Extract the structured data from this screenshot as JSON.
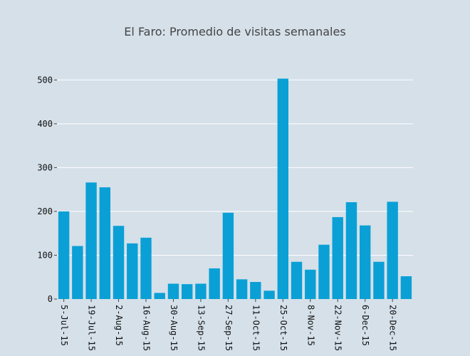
{
  "chart_data": {
    "type": "bar",
    "title": "El Faro: Promedio de visitas semanales",
    "xlabel": "",
    "ylabel": "",
    "ylim": [
      0,
      520
    ],
    "yticks": [
      0,
      100,
      200,
      300,
      400,
      500
    ],
    "grid": true,
    "bar_color": "#0aa0d6",
    "background_color": "#d5e0e9",
    "categories": [
      "2015-07-05",
      "2015-07-12",
      "2015-07-19",
      "2015-07-26",
      "2015-08-02",
      "2015-08-09",
      "2015-08-16",
      "2015-08-23",
      "2015-08-30",
      "2015-09-06",
      "2015-09-13",
      "2015-09-20",
      "2015-09-27",
      "2015-10-04",
      "2015-10-11",
      "2015-10-18",
      "2015-10-25",
      "2015-11-01",
      "2015-11-08",
      "2015-11-15",
      "2015-11-22",
      "2015-11-29",
      "2015-12-06",
      "2015-12-13",
      "2015-12-20",
      "2015-12-27"
    ],
    "values": [
      200,
      121,
      266,
      255,
      167,
      127,
      140,
      14,
      35,
      34,
      35,
      70,
      197,
      45,
      39,
      19,
      503,
      85,
      67,
      124,
      187,
      221,
      168,
      85,
      222,
      52
    ],
    "xtick_labels": [
      "5-Jul-15",
      "19-Jul-15",
      "2-Aug-15",
      "16-Aug-15",
      "30-Aug-15",
      "13-Sep-15",
      "27-Sep-15",
      "11-Oct-15",
      "25-Oct-15",
      "8-Nov-15",
      "22-Nov-15",
      "6-Dec-15",
      "20-Dec-15"
    ],
    "xtick_indices": [
      0,
      2,
      4,
      6,
      8,
      10,
      12,
      14,
      16,
      18,
      20,
      22,
      24
    ]
  }
}
